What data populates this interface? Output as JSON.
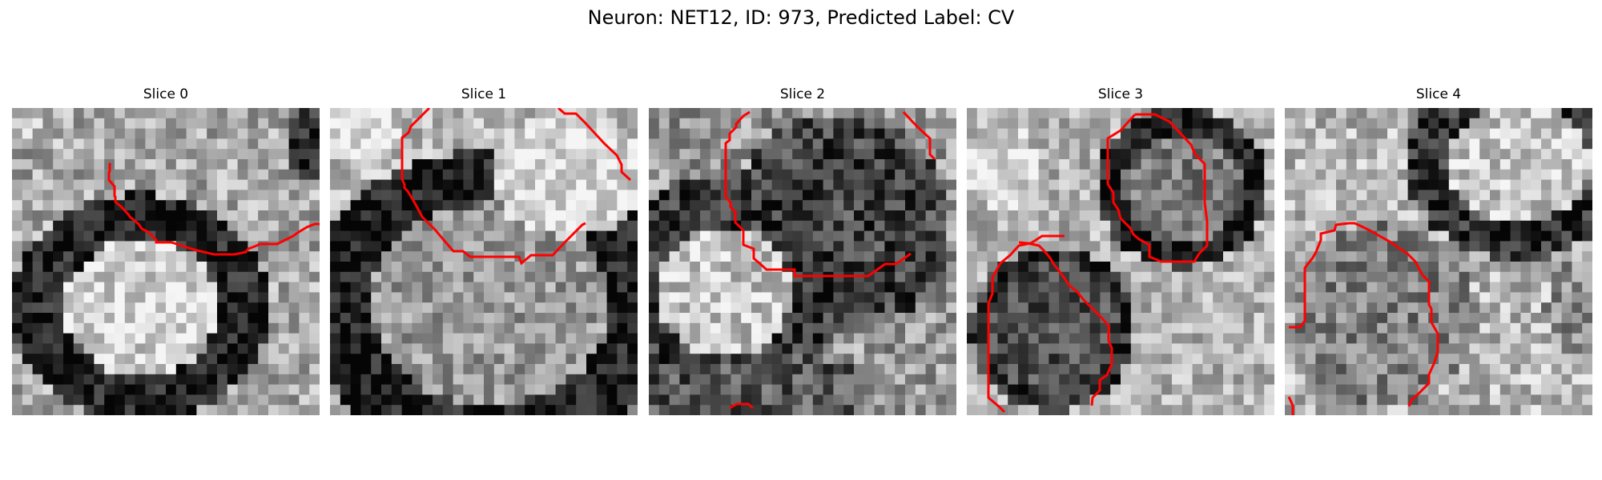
{
  "figure": {
    "title": "Neuron: NET12, ID: 973, Predicted Label: CV",
    "contour_color": "#ff0000"
  },
  "slices": [
    {
      "title": "Slice 0"
    },
    {
      "title": "Slice 1"
    },
    {
      "title": "Slice 2"
    },
    {
      "title": "Slice 3"
    },
    {
      "title": "Slice 4"
    }
  ]
}
